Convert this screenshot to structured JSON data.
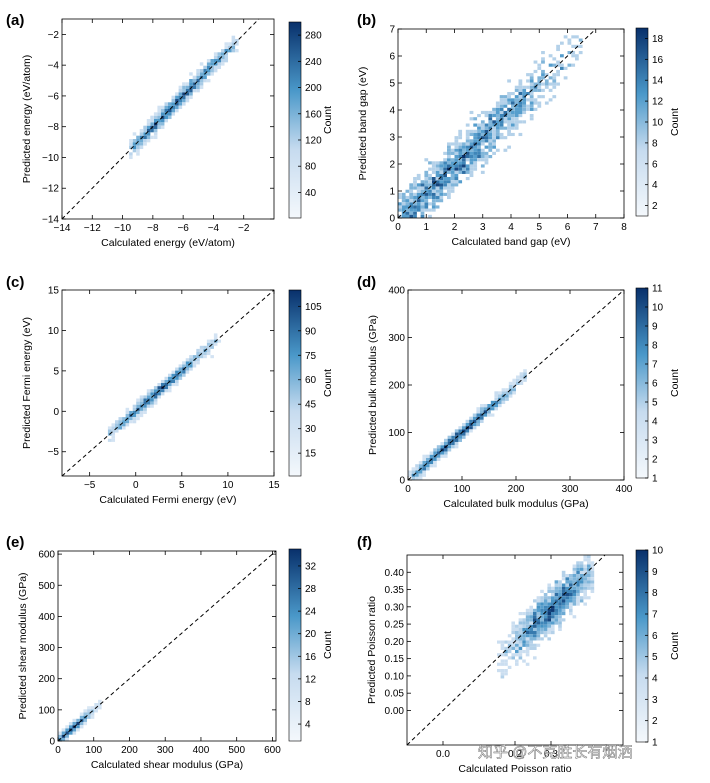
{
  "colors": {
    "low": "#f4f8fc",
    "mid": "#6aaed6",
    "high": "#08306b",
    "line": "#000000"
  },
  "watermark": "知乎 @不克胜长有烟洒",
  "chart_data": [
    {
      "id": "a",
      "panel": "(a)",
      "type": "heatmap",
      "xlabel": "Calculated energy (eV/atom)",
      "ylabel": "Predicted energy (eV/atom)",
      "xlim": [
        -14,
        0
      ],
      "ylim": [
        -14,
        -1
      ],
      "xticks": [
        -14,
        -12,
        -10,
        -8,
        -6,
        -4,
        -2
      ],
      "yticks": [
        -14,
        -12,
        -10,
        -8,
        -6,
        -4,
        -2
      ],
      "xtick_labels": [
        "−14",
        "−12",
        "−10",
        "−8",
        "−6",
        "−4",
        "−2"
      ],
      "ytick_labels": [
        "−14",
        "−12",
        "−10",
        "−8",
        "−6",
        "−4",
        "−2"
      ],
      "colorbar": {
        "label": "Count",
        "min": 1,
        "max": 300,
        "ticks": [
          40,
          80,
          120,
          160,
          200,
          240,
          280
        ]
      },
      "density": {
        "center": [
          -6.5,
          -6.5
        ],
        "spread_along": 2.2,
        "spread_across": 0.25,
        "range": [
          -9.5,
          -2.5
        ]
      }
    },
    {
      "id": "b",
      "panel": "(b)",
      "type": "heatmap",
      "xlabel": "Calculated band gap (eV)",
      "ylabel": "Predicted band gap (eV)",
      "xlim": [
        0,
        8
      ],
      "ylim": [
        0,
        7
      ],
      "xticks": [
        0,
        1,
        2,
        3,
        4,
        5,
        6,
        7,
        8
      ],
      "yticks": [
        0,
        1,
        2,
        3,
        4,
        5,
        6,
        7
      ],
      "xtick_labels": [
        "0",
        "1",
        "2",
        "3",
        "4",
        "5",
        "6",
        "7",
        "8"
      ],
      "ytick_labels": [
        "0",
        "1",
        "2",
        "3",
        "4",
        "5",
        "6",
        "7"
      ],
      "colorbar": {
        "label": "Count",
        "min": 1,
        "max": 19,
        "ticks": [
          2,
          4,
          6,
          8,
          10,
          12,
          14,
          16,
          18
        ]
      },
      "density": {
        "center": [
          2.2,
          2.1
        ],
        "spread_along": 1.8,
        "spread_across": 0.45,
        "range": [
          0,
          6.5
        ]
      }
    },
    {
      "id": "c",
      "panel": "(c)",
      "type": "heatmap",
      "xlabel": "Calculated Fermi energy (eV)",
      "ylabel": "Predicted Fermi energy (eV)",
      "xlim": [
        -8,
        15
      ],
      "ylim": [
        -8,
        15
      ],
      "xticks": [
        -5,
        0,
        5,
        10,
        15
      ],
      "yticks": [
        -5,
        0,
        5,
        10,
        15
      ],
      "xtick_labels": [
        "−5",
        "0",
        "5",
        "10",
        "15"
      ],
      "ytick_labels": [
        "−5",
        "0",
        "5",
        "10",
        "15"
      ],
      "colorbar": {
        "label": "Count",
        "min": 1,
        "max": 115,
        "ticks": [
          15,
          30,
          45,
          60,
          75,
          90,
          105
        ]
      },
      "density": {
        "center": [
          2.5,
          2.5
        ],
        "spread_along": 3.2,
        "spread_across": 0.35,
        "range": [
          -3,
          9
        ]
      }
    },
    {
      "id": "d",
      "panel": "(d)",
      "type": "heatmap",
      "xlabel": "Calculated bulk modulus (GPa)",
      "ylabel": "Predicted bulk modulus (GPa)",
      "xlim": [
        0,
        400
      ],
      "ylim": [
        0,
        400
      ],
      "xticks": [
        0,
        100,
        200,
        300,
        400
      ],
      "yticks": [
        0,
        100,
        200,
        300,
        400
      ],
      "xtick_labels": [
        "0",
        "100",
        "200",
        "300",
        "400"
      ],
      "ytick_labels": [
        "0",
        "100",
        "200",
        "300",
        "400"
      ],
      "colorbar": {
        "label": "Count",
        "min": 1,
        "max": 11,
        "ticks": [
          1,
          2,
          3,
          4,
          5,
          6,
          7,
          8,
          9,
          10,
          11
        ]
      },
      "density": {
        "center": [
          90,
          90
        ],
        "spread_along": 60,
        "spread_across": 6,
        "range": [
          5,
          220
        ]
      }
    },
    {
      "id": "e",
      "panel": "(e)",
      "type": "heatmap",
      "xlabel": "Calculated shear modulus (GPa)",
      "ylabel": "Predicted shear modulus (GPa)",
      "xlim": [
        0,
        610
      ],
      "ylim": [
        0,
        610
      ],
      "xticks": [
        0,
        100,
        200,
        300,
        400,
        500,
        600
      ],
      "yticks": [
        0,
        100,
        200,
        300,
        400,
        500,
        600
      ],
      "xtick_labels": [
        "0",
        "100",
        "200",
        "300",
        "400",
        "500",
        "600"
      ],
      "ytick_labels": [
        "0",
        "100",
        "200",
        "300",
        "400",
        "500",
        "600"
      ],
      "colorbar": {
        "label": "Count",
        "min": 1,
        "max": 35,
        "ticks": [
          4,
          8,
          12,
          16,
          20,
          24,
          28,
          32
        ]
      },
      "density": {
        "center": [
          40,
          40
        ],
        "spread_along": 30,
        "spread_across": 6,
        "range": [
          0,
          120
        ]
      }
    },
    {
      "id": "f",
      "panel": "(f)",
      "type": "heatmap",
      "xlabel": "Calculated Poisson ratio",
      "ylabel": "Predicted Poisson ratio",
      "xlim": [
        -0.1,
        0.5
      ],
      "ylim": [
        -0.1,
        0.45
      ],
      "xticks": [
        0.0,
        0.2,
        0.3
      ],
      "yticks": [
        0.0,
        0.05,
        0.1,
        0.15,
        0.2,
        0.25,
        0.3,
        0.35,
        0.4
      ],
      "xtick_labels": [
        "0.0",
        "0.2",
        "0.3"
      ],
      "ytick_labels": [
        "0.00",
        "0.05",
        "0.10",
        "0.15",
        "0.20",
        "0.25",
        "0.30",
        "0.35",
        "0.40"
      ],
      "colorbar": {
        "label": "Count",
        "min": 1,
        "max": 10,
        "ticks": [
          1,
          2,
          3,
          4,
          5,
          6,
          7,
          8,
          9,
          10
        ]
      },
      "density": {
        "center": [
          0.3,
          0.29
        ],
        "spread_along": 0.06,
        "spread_across": 0.03,
        "range": [
          0.15,
          0.42
        ]
      }
    }
  ]
}
